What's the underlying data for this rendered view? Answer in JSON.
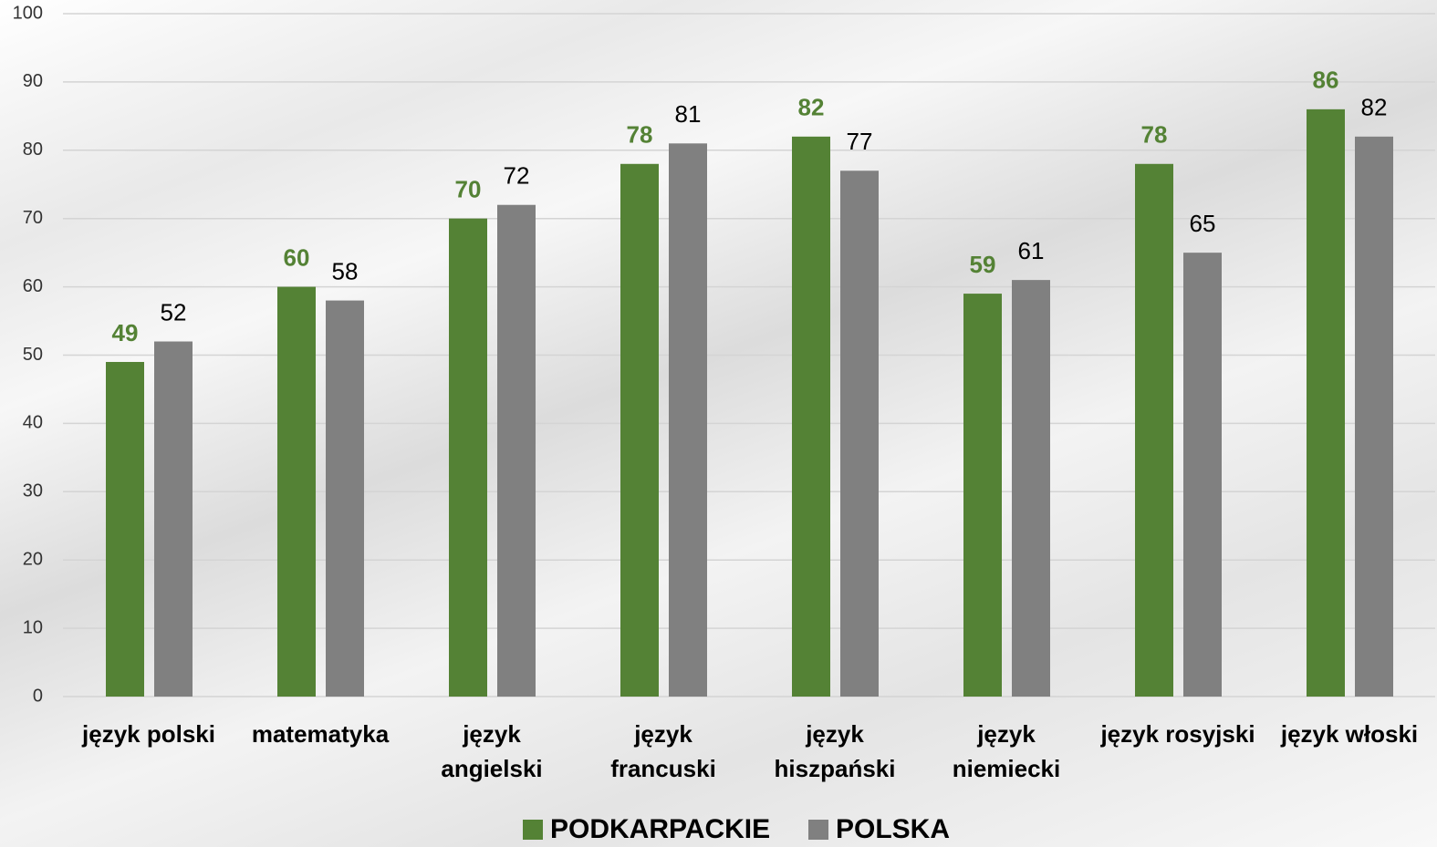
{
  "chart_data": {
    "type": "bar",
    "categories": [
      "język polski",
      "matematyka",
      "język\nangielski",
      "język\nfrancuski",
      "język\nhiszpański",
      "język\nniemiecki",
      "język rosyjski",
      "język włoski"
    ],
    "series": [
      {
        "name": "PODKARPACKIE",
        "color": "#548235",
        "values": [
          49,
          60,
          70,
          78,
          82,
          59,
          78,
          86
        ]
      },
      {
        "name": "POLSKA",
        "color": "#808080",
        "values": [
          52,
          58,
          72,
          81,
          77,
          61,
          65,
          82
        ]
      }
    ],
    "ylim": [
      0,
      100
    ],
    "yticks": [
      0,
      10,
      20,
      30,
      40,
      50,
      60,
      70,
      80,
      90,
      100
    ],
    "grid": true,
    "legend": "bottom"
  }
}
